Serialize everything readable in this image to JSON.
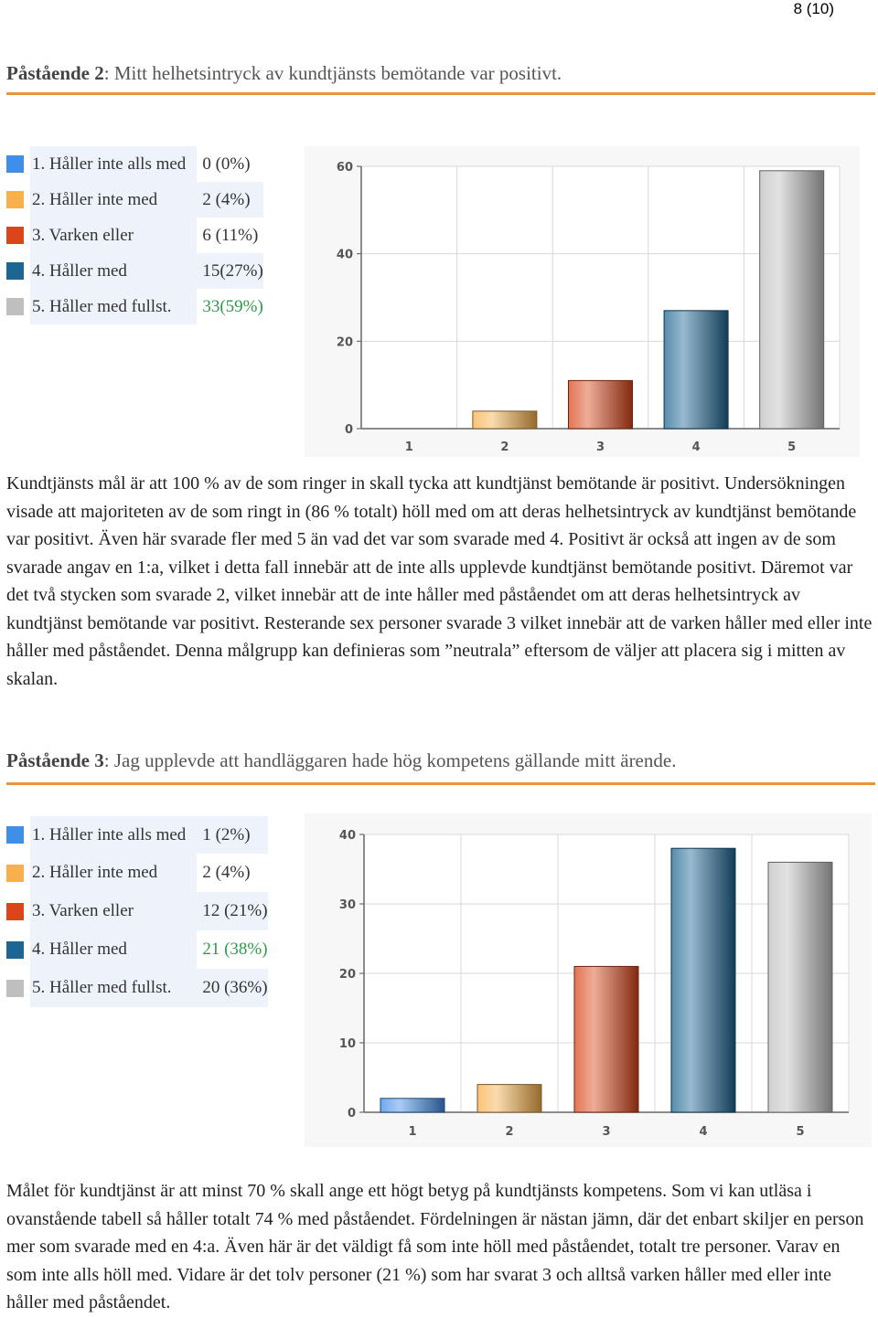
{
  "page_number": "8 (10)",
  "section2": {
    "heading_label": "Påstående 2",
    "heading_text": ": Mitt helhetsintryck av kundtjänsts bemötande var positivt.",
    "legend": [
      {
        "label": "1. Håller inte alls med",
        "value": "0 (0%)",
        "color": "#3f8ee8"
      },
      {
        "label": "2. Håller inte med",
        "value": "2 (4%)",
        "color": "#f7b04a"
      },
      {
        "label": "3. Varken eller",
        "value": "6 (11%)",
        "color": "#d9461a"
      },
      {
        "label": "4. Håller med",
        "value": "15(27%)",
        "color": "#1d6592"
      },
      {
        "label": "5. Håller med fullst.",
        "value": "33(59%)",
        "color": "#bfbfbf"
      }
    ],
    "paragraph": "Kundtjänsts mål är att 100 % av de som ringer in skall tycka att kundtjänst bemötande är positivt. Undersökningen visade att majoriteten av de som ringt in (86 % totalt) höll med om att deras helhetsintryck av kundtjänst bemötande var positivt. Även här svarade fler med 5 än vad det var som svarade med 4. Positivt är också att ingen av de som svarade angav en 1:a, vilket i detta fall innebär att de inte alls upplevde kundtjänst bemötande positivt. Däremot var det två stycken som svarade 2, vilket innebär att de inte håller med påståendet om att deras helhetsintryck av kundtjänst bemötande var positivt. Resterande sex personer svarade 3 vilket innebär att de varken håller med eller inte håller med påståendet. Denna målgrupp kan definieras som ”neutrala” eftersom de väljer att placera sig i mitten av skalan."
  },
  "section3": {
    "heading_label": "Påstående 3",
    "heading_text": ": Jag upplevde att handläggaren hade hög kompetens gällande mitt ärende.",
    "legend": [
      {
        "label": "1. Håller inte alls med",
        "value": "1 (2%)",
        "color": "#3f8ee8"
      },
      {
        "label": "2. Håller inte med",
        "value": "2 (4%)",
        "color": "#f7b04a"
      },
      {
        "label": "3. Varken eller",
        "value": "12 (21%)",
        "color": "#d9461a"
      },
      {
        "label": "4. Håller med",
        "value": "21 (38%)",
        "color": "#1d6592"
      },
      {
        "label": "5. Håller med fullst.",
        "value": "20 (36%)",
        "color": "#bfbfbf"
      }
    ],
    "paragraph": "Målet för kundtjänst är att minst 70 % skall ange ett högt betyg på kundtjänsts kompetens. Som vi kan utläsa i ovanstående tabell så håller totalt 74 % med påståendet. Fördelningen är nästan jämn, där det enbart skiljer en person mer som svarade med en 4:a. Även här är det väldigt få som inte höll med påståendet, totalt tre personer. Varav en som inte alls höll med. Vidare är det tolv personer (21 %) som har svarat 3 och alltså varken håller med eller inte håller med påståendet."
  },
  "chart_data": [
    {
      "type": "bar",
      "categories": [
        "1",
        "2",
        "3",
        "4",
        "5"
      ],
      "values": [
        0,
        4,
        11,
        27,
        59
      ],
      "ylim": [
        0,
        60
      ],
      "yticks": [
        "0",
        "20",
        "40",
        "60"
      ],
      "grid": true,
      "colors": [
        "#3f8ee8",
        "#f7b04a",
        "#d9461a",
        "#1d6592",
        "#bfbfbf"
      ]
    },
    {
      "type": "bar",
      "categories": [
        "1",
        "2",
        "3",
        "4",
        "5"
      ],
      "values": [
        2,
        4,
        21,
        38,
        36
      ],
      "ylim": [
        0,
        40
      ],
      "yticks": [
        "0",
        "10",
        "20",
        "30",
        "40"
      ],
      "grid": true,
      "colors": [
        "#3f8ee8",
        "#f7b04a",
        "#d9461a",
        "#1d6592",
        "#bfbfbf"
      ]
    }
  ]
}
